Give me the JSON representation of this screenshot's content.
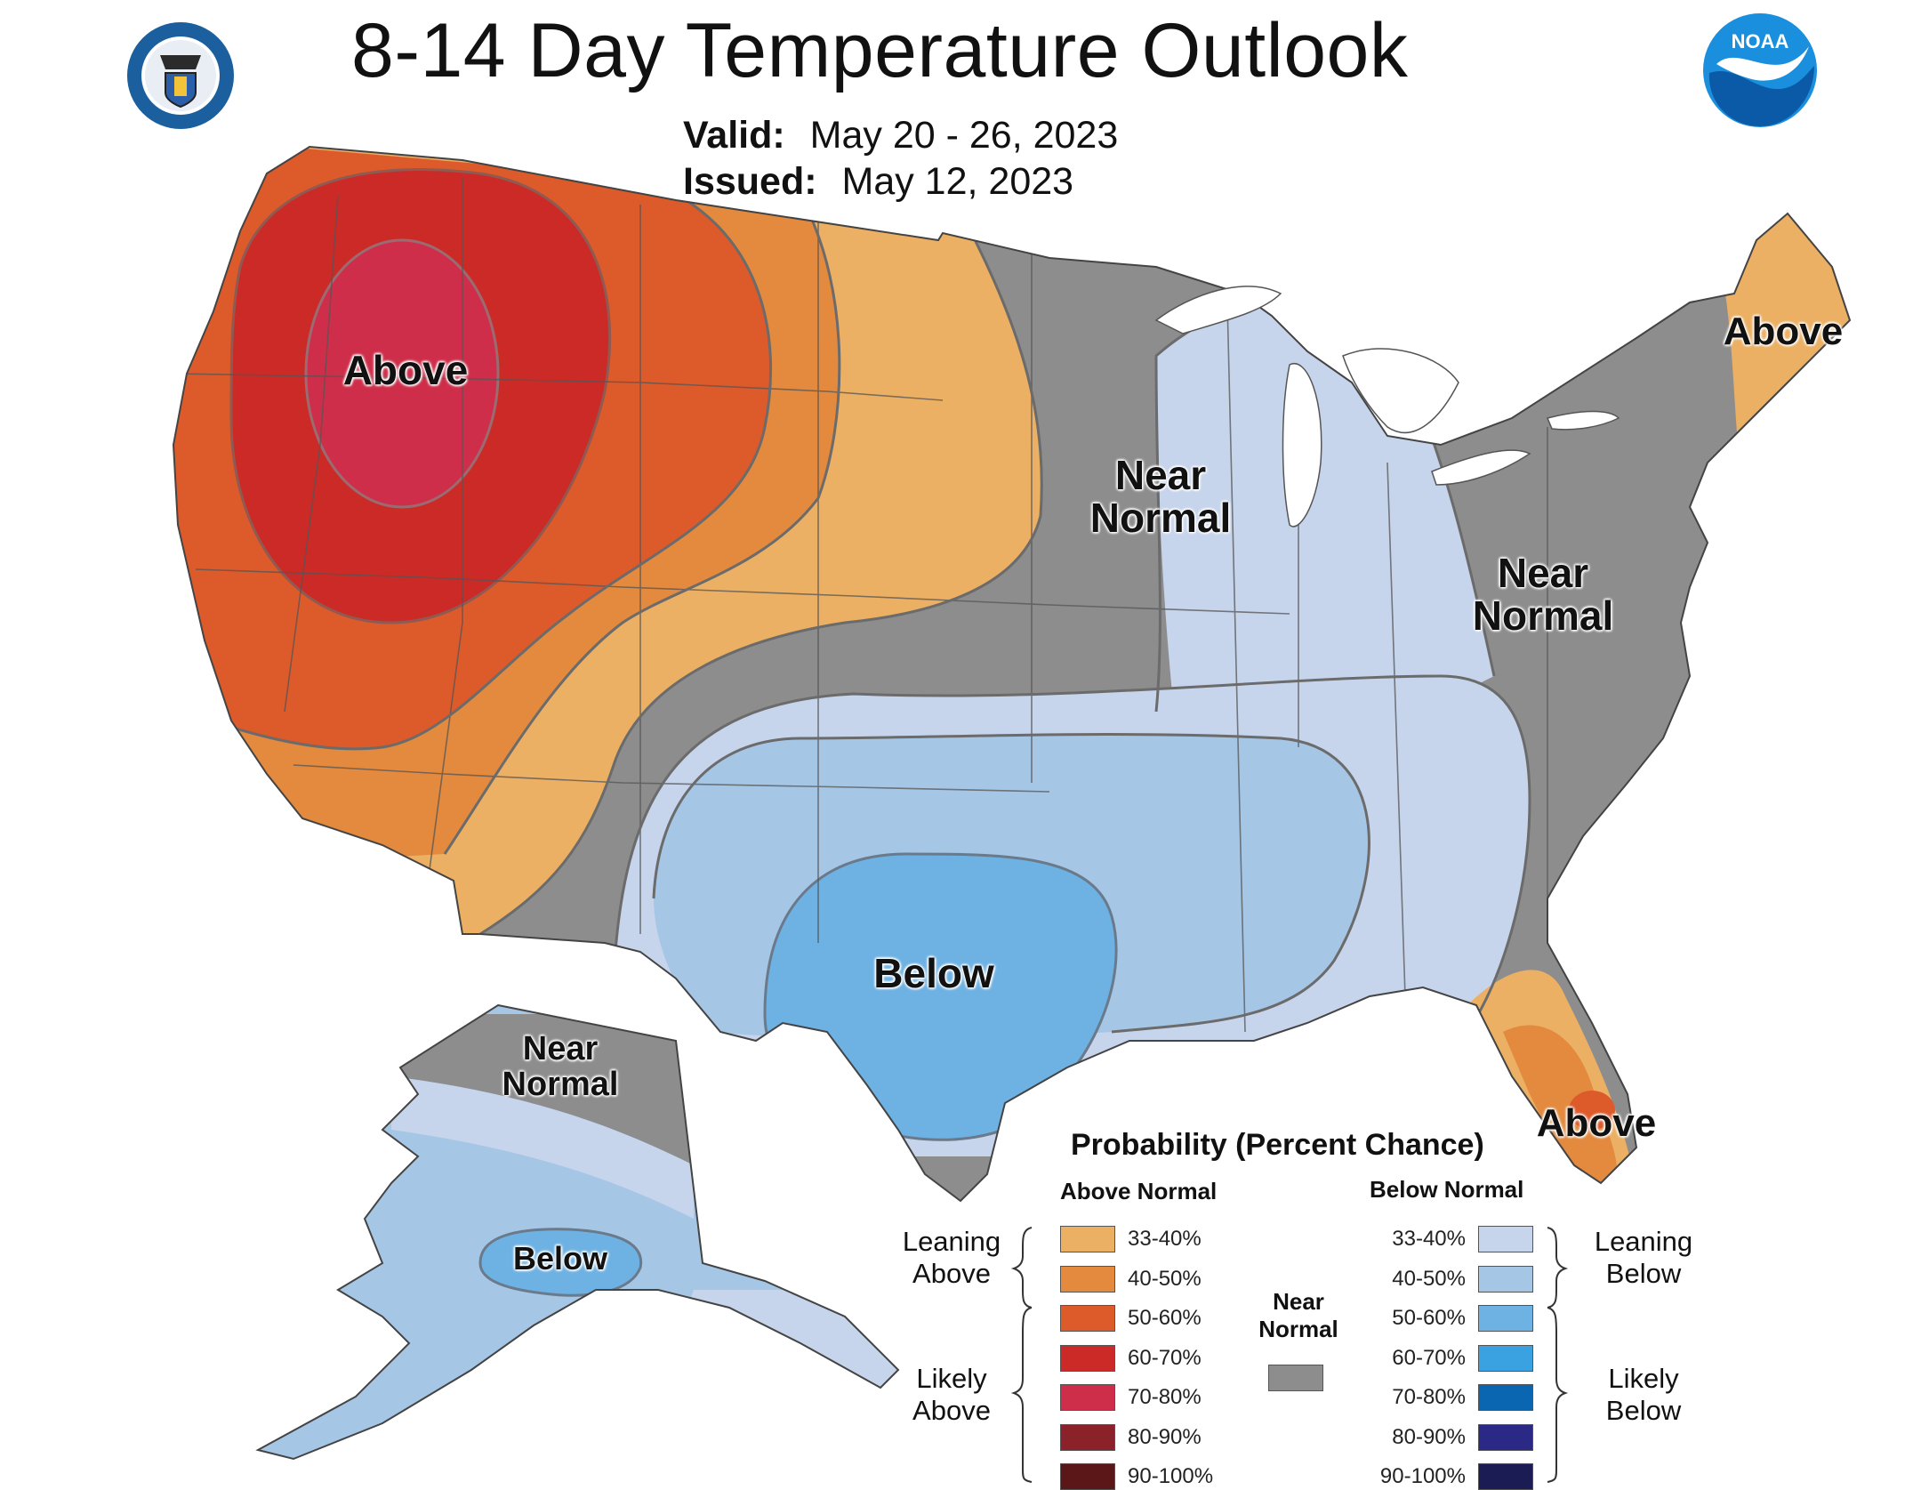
{
  "title": "8-14 Day Temperature Outlook",
  "valid": {
    "label": "Valid:",
    "value": "May 20 - 26, 2023"
  },
  "issued": {
    "label": "Issued:",
    "value": "May 12, 2023"
  },
  "logos": {
    "left": "department-of-commerce-seal",
    "right": "noaa-logo",
    "noaa_text": "NOAA"
  },
  "colors": {
    "above_33_40": "#ecb064",
    "above_40_50": "#e38a3e",
    "above_50_60": "#dd5a2b",
    "above_60_70": "#cc2a26",
    "above_70_80": "#cf2e4a",
    "above_80_90": "#8b2229",
    "above_90_100": "#5b1717",
    "near_normal": "#8d8d8d",
    "below_33_40": "#c6d4ec",
    "below_40_50": "#a6c6e6",
    "below_50_60": "#6eb2e4",
    "below_60_70": "#3aa2e0",
    "below_70_80": "#0a66b0",
    "below_80_90": "#2a2a86",
    "below_90_100": "#1c1c55"
  },
  "regions": {
    "above_west": "Above",
    "near_normal_central": "Near\nNormal",
    "near_normal_east": "Near\nNormal",
    "above_maine": "Above",
    "below_south": "Below",
    "above_florida": "Above",
    "alaska_near_normal": "Near\nNormal",
    "alaska_below": "Below"
  },
  "legend": {
    "title": "Probability (Percent Chance)",
    "above_header": "Above Normal",
    "below_header": "Below Normal",
    "above_items": [
      {
        "label": "33-40%",
        "color_key": "above_33_40"
      },
      {
        "label": "40-50%",
        "color_key": "above_40_50"
      },
      {
        "label": "50-60%",
        "color_key": "above_50_60"
      },
      {
        "label": "60-70%",
        "color_key": "above_60_70"
      },
      {
        "label": "70-80%",
        "color_key": "above_70_80"
      },
      {
        "label": "80-90%",
        "color_key": "above_80_90"
      },
      {
        "label": "90-100%",
        "color_key": "above_90_100"
      }
    ],
    "below_items": [
      {
        "label": "33-40%",
        "color_key": "below_33_40"
      },
      {
        "label": "40-50%",
        "color_key": "below_40_50"
      },
      {
        "label": "50-60%",
        "color_key": "below_50_60"
      },
      {
        "label": "60-70%",
        "color_key": "below_60_70"
      },
      {
        "label": "70-80%",
        "color_key": "below_70_80"
      },
      {
        "label": "80-90%",
        "color_key": "below_80_90"
      },
      {
        "label": "90-100%",
        "color_key": "below_90_100"
      }
    ],
    "near_normal": "Near\nNormal",
    "leaning_above": "Leaning\nAbove",
    "likely_above": "Likely\nAbove",
    "leaning_below": "Leaning\nBelow",
    "likely_below": "Likely\nBelow"
  }
}
